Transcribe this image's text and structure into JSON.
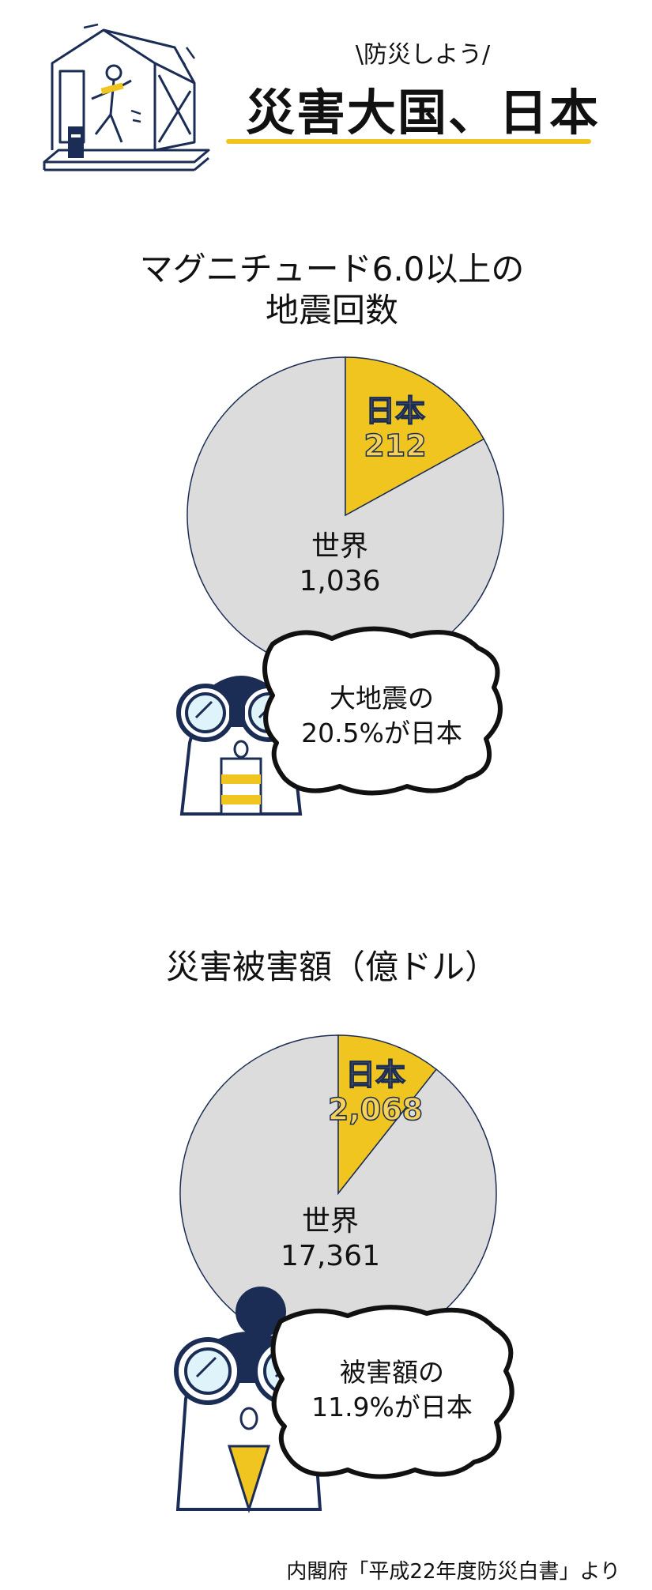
{
  "header": {
    "subtitle": "\\防災しよう/",
    "title": "災害大国、日本"
  },
  "colors": {
    "accent": "#f0c520",
    "rest": "#dcdcdc",
    "navy": "#1b2d55"
  },
  "chart_data": [
    {
      "type": "pie",
      "title": "マグニチュード6.0以上の地震回数",
      "title_lines": [
        "マグニチュード6.0以上の",
        "地震回数"
      ],
      "slices": [
        {
          "name": "日本",
          "value": 212,
          "value_label": "212"
        },
        {
          "name": "世界",
          "value": 1036,
          "value_label": "1,036"
        }
      ],
      "callout_lines": [
        "大地震の",
        "20.5%が日本"
      ]
    },
    {
      "type": "pie",
      "title": "災害被害額（億ドル）",
      "title_lines": [
        "災害被害額（億ドル）"
      ],
      "slices": [
        {
          "name": "日本",
          "value": 2068,
          "value_label": "2,068"
        },
        {
          "name": "世界",
          "value": 17361,
          "value_label": "17,361"
        }
      ],
      "callout_lines": [
        "被害額の",
        "11.9%が日本"
      ]
    }
  ],
  "source": "内閣府「平成22年度防災白書」より",
  "icons": [
    "house-illustration",
    "binoculars-person-illustration"
  ]
}
